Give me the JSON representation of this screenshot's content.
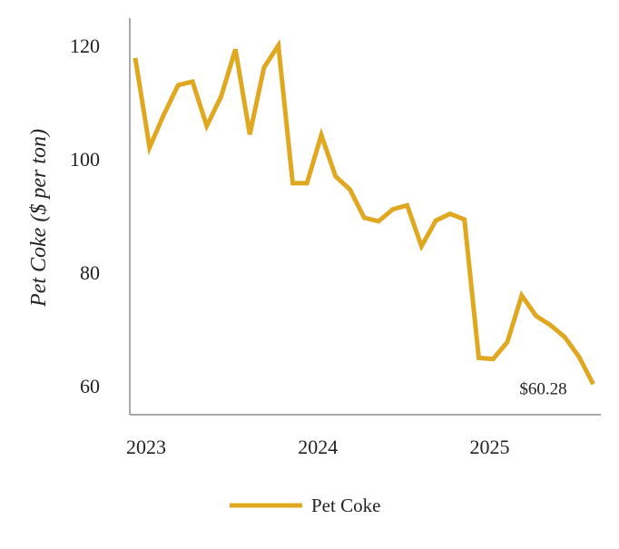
{
  "chart_data": {
    "type": "line",
    "title": "",
    "xlabel": "",
    "ylabel": "Pet Coke ($ per ton)",
    "x_tick_labels": [
      "2023",
      "2024",
      "2025"
    ],
    "y_ticks": [
      60,
      80,
      100,
      120
    ],
    "ylim": [
      55,
      125
    ],
    "grid": false,
    "legend_position": "bottom-center",
    "series": [
      {
        "name": "Pet Coke",
        "color": "#E0A820",
        "x": [
          "2023-01",
          "2023-02",
          "2023-03",
          "2023-04",
          "2023-05",
          "2023-06",
          "2023-07",
          "2023-08",
          "2023-09",
          "2023-10",
          "2023-11",
          "2023-12",
          "2024-01",
          "2024-02",
          "2024-03",
          "2024-04",
          "2024-05",
          "2024-06",
          "2024-07",
          "2024-08",
          "2024-09",
          "2024-10",
          "2024-11",
          "2024-12",
          "2025-01",
          "2025-02",
          "2025-03",
          "2025-04",
          "2025-05",
          "2025-06",
          "2025-07",
          "2025-08",
          "2025-09"
        ],
        "values": [
          117.8,
          102.0,
          107.8,
          113.0,
          113.6,
          105.8,
          111.0,
          119.3,
          104.3,
          116.1,
          120.0,
          95.7,
          95.7,
          104.2,
          96.9,
          94.6,
          89.6,
          89.0,
          91.1,
          91.8,
          84.6,
          89.1,
          90.3,
          89.3,
          64.9,
          64.7,
          67.7,
          75.9,
          72.3,
          70.7,
          68.6,
          65.1,
          60.28
        ]
      }
    ],
    "annotations": [
      {
        "text": "$60.28"
      }
    ],
    "legend": [
      {
        "label": "Pet Coke",
        "color": "#E0A820"
      }
    ]
  }
}
